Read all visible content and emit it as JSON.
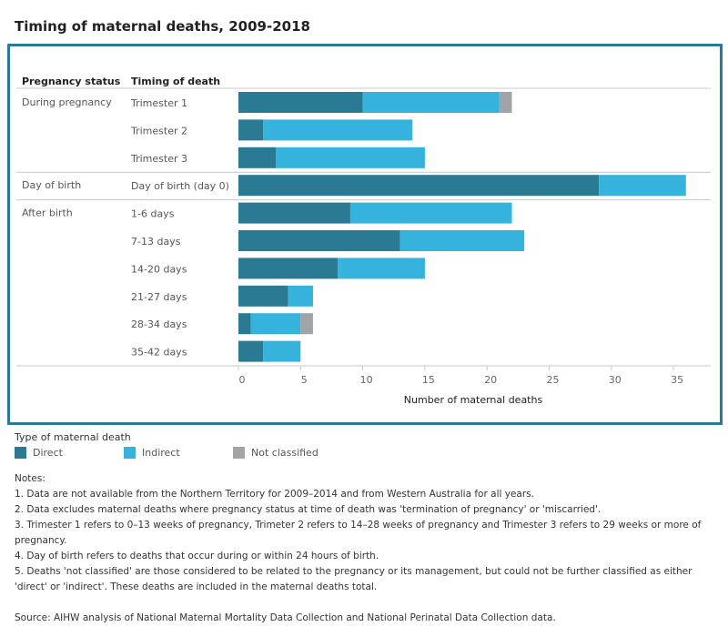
{
  "title": "Timing of maternal deaths, 2009-2018",
  "colors": {
    "direct": "#2a7a93",
    "indirect": "#35b3dc",
    "not_classified": "#a0a4a8",
    "border": "#2a7a93"
  },
  "chart_data": {
    "type": "bar",
    "orientation": "horizontal",
    "stacked": true,
    "title": "Timing of maternal deaths, 2009-2018",
    "xlabel": "Number of maternal deaths",
    "column_headers": [
      "Pregnancy status",
      "Timing of death"
    ],
    "groups": [
      {
        "label": "During pregnancy",
        "categories": [
          "Trimester 1",
          "Trimester 2",
          "Trimester 3"
        ]
      },
      {
        "label": "Day of birth",
        "categories": [
          "Day of birth (day 0)"
        ]
      },
      {
        "label": "After birth",
        "categories": [
          "1-6 days",
          "7-13 days",
          "14-20 days",
          "21-27 days",
          "28-34 days",
          "35-42 days"
        ]
      }
    ],
    "categories": [
      "Trimester 1",
      "Trimester 2",
      "Trimester 3",
      "Day of birth (day 0)",
      "1-6 days",
      "7-13 days",
      "14-20 days",
      "21-27 days",
      "28-34 days",
      "35-42 days"
    ],
    "series": [
      {
        "name": "Direct",
        "values": [
          10,
          2,
          3,
          29,
          9,
          13,
          8,
          4,
          1,
          2
        ]
      },
      {
        "name": "Indirect",
        "values": [
          11,
          12,
          12,
          7,
          13,
          10,
          7,
          2,
          4,
          3
        ]
      },
      {
        "name": "Not classified",
        "values": [
          1,
          0,
          0,
          0,
          0,
          0,
          0,
          0,
          1,
          0
        ]
      }
    ],
    "xlim": [
      0,
      37
    ],
    "xticks": [
      0,
      5,
      10,
      15,
      20,
      25,
      30,
      35
    ],
    "legend_title": "Type of maternal death",
    "legend_position": "bottom-left"
  },
  "legend": {
    "title": "Type of maternal death",
    "items": [
      "Direct",
      "Indirect",
      "Not classified"
    ]
  },
  "notes": {
    "heading": "Notes:",
    "items": [
      "1. Data are not available from the Northern Territory for 2009–2014 and from Western Australia for all years.",
      "2. Data excludes maternal deaths where pregnancy status at time of death was 'termination of pregnancy' or 'miscarried'.",
      "3. Trimester 1 refers to 0–13 weeks of pregnancy, Trimeter 2 refers to 14–28 weeks of pregnancy and Trimester 3 refers to 29 weeks or more of pregnancy.",
      "4. Day of birth refers to deaths that occur during or within 24 hours of birth.",
      "5. Deaths 'not classified' are those considered to be related to the pregnancy or its management, but could not be further classified as either 'direct' or 'indirect'. These deaths are included in the maternal deaths total."
    ],
    "source": "Source: AIHW analysis of National Maternal Mortality Data Collection and National Perinatal Data Collection data."
  }
}
